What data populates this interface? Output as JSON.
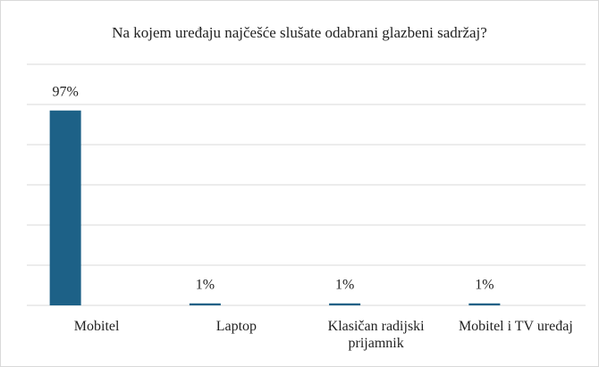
{
  "chart_data": {
    "type": "bar",
    "title": "Na kojem uređaju najčešće slušate odabrani glazbeni sadržaj?",
    "categories": [
      "Mobitel",
      "Laptop",
      "Klasičan radijski prijamnik",
      "Mobitel i TV uređaj"
    ],
    "values": [
      97,
      1,
      1,
      1
    ],
    "value_labels": [
      "97%",
      "1%",
      "1%",
      "1%"
    ],
    "color": "#1d6187",
    "ylim": [
      0,
      120
    ],
    "yticks": [
      0,
      20,
      40,
      60,
      80,
      100,
      120
    ],
    "grid": true
  }
}
